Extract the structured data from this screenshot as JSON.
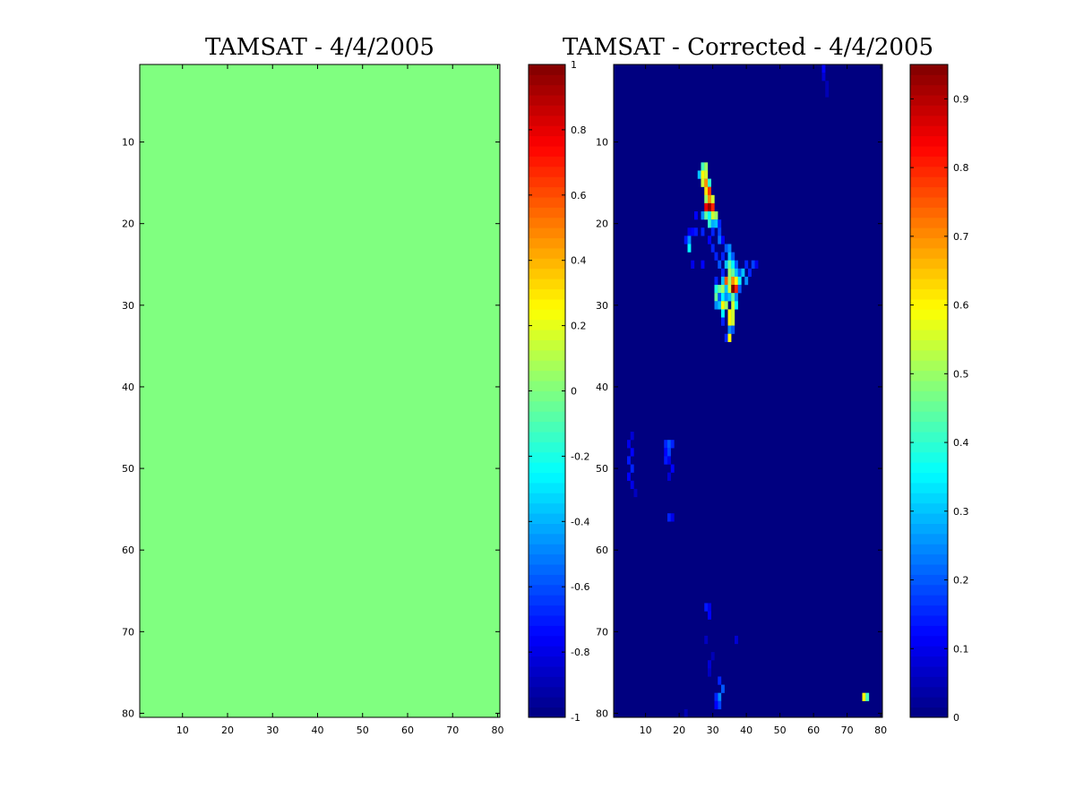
{
  "chart_data": [
    {
      "type": "heatmap",
      "title": "TAMSAT - 4/4/2005",
      "xlim": [
        0.5,
        80.5
      ],
      "ylim": [
        80.5,
        0.5
      ],
      "y_direction": "reversed",
      "x_ticks": [
        10,
        20,
        30,
        40,
        50,
        60,
        70,
        80
      ],
      "y_ticks": [
        10,
        20,
        30,
        40,
        50,
        60,
        70,
        80
      ],
      "x_tick_labels": [
        "10",
        "20",
        "30",
        "40",
        "50",
        "60",
        "70",
        "80"
      ],
      "y_tick_labels": [
        "10",
        "20",
        "30",
        "40",
        "50",
        "60",
        "70",
        "80"
      ],
      "grid": false,
      "background_value": 0,
      "cells": [],
      "colormap": "jet",
      "colorbar": {
        "clim": [
          -1,
          1
        ],
        "ticks": [
          -1,
          -0.8,
          -0.6,
          -0.4,
          -0.2,
          0,
          0.2,
          0.4,
          0.6,
          0.8,
          1
        ],
        "tick_labels": [
          "-1",
          "-0.8",
          "-0.6",
          "-0.4",
          "-0.2",
          "0",
          "0.2",
          "0.4",
          "0.6",
          "0.8",
          "1"
        ]
      }
    },
    {
      "type": "heatmap",
      "title": "TAMSAT - Corrected - 4/4/2005",
      "xlim": [
        0.5,
        80.5
      ],
      "ylim": [
        80.5,
        0.5
      ],
      "y_direction": "reversed",
      "x_ticks": [
        10,
        20,
        30,
        40,
        50,
        60,
        70,
        80
      ],
      "y_ticks": [
        10,
        20,
        30,
        40,
        50,
        60,
        70,
        80
      ],
      "x_tick_labels": [
        "10",
        "20",
        "30",
        "40",
        "50",
        "60",
        "70",
        "80"
      ],
      "y_tick_labels": [
        "10",
        "20",
        "30",
        "40",
        "50",
        "60",
        "70",
        "80"
      ],
      "grid": false,
      "background_value": 0,
      "cells": [
        [
          27,
          13,
          0.42
        ],
        [
          28,
          13,
          0.5
        ],
        [
          26,
          14,
          0.3
        ],
        [
          27,
          14,
          0.6
        ],
        [
          28,
          14,
          0.55
        ],
        [
          27,
          15,
          0.55
        ],
        [
          28,
          15,
          0.7
        ],
        [
          29,
          15,
          0.4
        ],
        [
          28,
          16,
          0.62
        ],
        [
          29,
          16,
          0.78
        ],
        [
          28,
          17,
          0.5
        ],
        [
          29,
          17,
          0.7
        ],
        [
          30,
          17,
          0.55
        ],
        [
          28,
          18,
          0.85
        ],
        [
          29,
          18,
          0.93
        ],
        [
          30,
          18,
          0.8
        ],
        [
          27,
          19,
          0.25
        ],
        [
          28,
          19,
          0.45
        ],
        [
          29,
          19,
          0.35
        ],
        [
          30,
          19,
          0.55
        ],
        [
          31,
          19,
          0.5
        ],
        [
          25,
          19,
          0.12
        ],
        [
          29,
          20,
          0.4
        ],
        [
          30,
          20,
          0.28
        ],
        [
          31,
          20,
          0.3
        ],
        [
          32,
          20,
          0.15
        ],
        [
          27,
          21,
          0.15
        ],
        [
          30,
          21,
          0.15
        ],
        [
          32,
          21,
          0.18
        ],
        [
          23,
          21,
          0.1
        ],
        [
          24,
          21,
          0.12
        ],
        [
          25,
          21,
          0.14
        ],
        [
          22,
          22,
          0.14
        ],
        [
          23,
          22,
          0.25
        ],
        [
          29,
          22,
          0.12
        ],
        [
          32,
          22,
          0.22
        ],
        [
          33,
          22,
          0.12
        ],
        [
          23,
          23,
          0.35
        ],
        [
          30,
          23,
          0.15
        ],
        [
          34,
          23,
          0.2
        ],
        [
          35,
          23,
          0.25
        ],
        [
          31,
          24,
          0.15
        ],
        [
          33,
          24,
          0.15
        ],
        [
          35,
          24,
          0.3
        ],
        [
          36,
          24,
          0.2
        ],
        [
          24,
          25,
          0.1
        ],
        [
          27,
          25,
          0.12
        ],
        [
          32,
          25,
          0.2
        ],
        [
          34,
          25,
          0.3
        ],
        [
          35,
          25,
          0.45
        ],
        [
          36,
          25,
          0.35
        ],
        [
          37,
          25,
          0.2
        ],
        [
          40,
          25,
          0.15
        ],
        [
          42,
          25,
          0.18
        ],
        [
          43,
          25,
          0.1
        ],
        [
          33,
          26,
          0.15
        ],
        [
          35,
          26,
          0.5
        ],
        [
          36,
          26,
          0.45
        ],
        [
          37,
          26,
          0.3
        ],
        [
          38,
          26,
          0.2
        ],
        [
          39,
          26,
          0.3
        ],
        [
          41,
          26,
          0.15
        ],
        [
          31,
          27,
          0.15
        ],
        [
          33,
          27,
          0.3
        ],
        [
          34,
          27,
          0.75
        ],
        [
          35,
          27,
          0.5
        ],
        [
          36,
          27,
          0.7
        ],
        [
          37,
          27,
          0.6
        ],
        [
          38,
          27,
          0.35
        ],
        [
          40,
          27,
          0.25
        ],
        [
          31,
          28,
          0.38
        ],
        [
          32,
          28,
          0.45
        ],
        [
          33,
          28,
          0.5
        ],
        [
          34,
          28,
          0.3
        ],
        [
          35,
          28,
          0.55
        ],
        [
          36,
          28,
          0.95
        ],
        [
          37,
          28,
          0.8
        ],
        [
          38,
          28,
          0.2
        ],
        [
          31,
          29,
          0.45
        ],
        [
          32,
          29,
          0.2
        ],
        [
          33,
          29,
          0.35
        ],
        [
          34,
          29,
          0.25
        ],
        [
          35,
          29,
          0.3
        ],
        [
          36,
          29,
          0.45
        ],
        [
          37,
          29,
          0.25
        ],
        [
          31,
          30,
          0.25
        ],
        [
          32,
          30,
          0.3
        ],
        [
          33,
          30,
          0.6
        ],
        [
          34,
          30,
          0.5
        ],
        [
          36,
          30,
          0.55
        ],
        [
          37,
          30,
          0.35
        ],
        [
          33,
          31,
          0.35
        ],
        [
          35,
          31,
          0.6
        ],
        [
          36,
          31,
          0.55
        ],
        [
          33,
          32,
          0.15
        ],
        [
          35,
          32,
          0.6
        ],
        [
          36,
          32,
          0.55
        ],
        [
          35,
          33,
          0.25
        ],
        [
          36,
          33,
          0.2
        ],
        [
          34,
          34,
          0.15
        ],
        [
          35,
          34,
          0.6
        ],
        [
          63,
          1,
          0.12
        ],
        [
          63,
          2,
          0.08
        ],
        [
          64,
          3,
          0.05
        ],
        [
          64,
          4,
          0.05
        ],
        [
          6,
          46,
          0.08
        ],
        [
          5,
          47,
          0.1
        ],
        [
          6,
          48,
          0.12
        ],
        [
          5,
          49,
          0.14
        ],
        [
          6,
          50,
          0.15
        ],
        [
          5,
          51,
          0.12
        ],
        [
          6,
          52,
          0.1
        ],
        [
          7,
          53,
          0.06
        ],
        [
          16,
          47,
          0.15
        ],
        [
          17,
          47,
          0.2
        ],
        [
          18,
          47,
          0.15
        ],
        [
          16,
          48,
          0.12
        ],
        [
          17,
          48,
          0.18
        ],
        [
          16,
          49,
          0.14
        ],
        [
          17,
          49,
          0.1
        ],
        [
          18,
          50,
          0.12
        ],
        [
          17,
          51,
          0.08
        ],
        [
          17,
          56,
          0.15
        ],
        [
          18,
          56,
          0.1
        ],
        [
          28,
          67,
          0.14
        ],
        [
          29,
          67,
          0.1
        ],
        [
          29,
          68,
          0.12
        ],
        [
          28,
          71,
          0.06
        ],
        [
          30,
          73,
          0.05
        ],
        [
          29,
          74,
          0.08
        ],
        [
          29,
          75,
          0.06
        ],
        [
          37,
          71,
          0.08
        ],
        [
          32,
          76,
          0.15
        ],
        [
          33,
          77,
          0.2
        ],
        [
          32,
          78,
          0.25
        ],
        [
          31,
          78,
          0.15
        ],
        [
          32,
          79,
          0.18
        ],
        [
          31,
          79,
          0.12
        ],
        [
          22,
          80,
          0.05
        ],
        [
          75,
          78,
          0.6
        ],
        [
          76,
          78,
          0.42
        ]
      ],
      "colormap": "jet",
      "colorbar": {
        "clim": [
          0,
          0.95
        ],
        "ticks": [
          0,
          0.1,
          0.2,
          0.3,
          0.4,
          0.5,
          0.6,
          0.7,
          0.8,
          0.9
        ],
        "tick_labels": [
          "0",
          "0.1",
          "0.2",
          "0.3",
          "0.4",
          "0.5",
          "0.6",
          "0.7",
          "0.8",
          "0.9"
        ]
      }
    }
  ]
}
